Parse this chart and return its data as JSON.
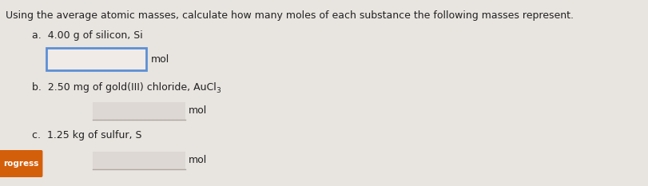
{
  "title": "Using the average atomic masses, calculate how many moles of each substance the following masses represent.",
  "title_fontsize": 9.0,
  "title_color": "#222222",
  "bg_color": "#e8e4e0",
  "item_a_label": "a.  4.00 g of silicon, Si",
  "item_b_label": "b.  2.50 mg of gold(III) chloride, AuCl",
  "item_b_subscript": "3",
  "item_c_label": "c.  1.25 kg of sulfur, S",
  "mol_label": "mol",
  "progress_btn_color": "#d45f0a",
  "progress_btn_text": "rogress",
  "progress_btn_text_color": "#ffffff",
  "box_a_border_color": "#5b8fd6",
  "box_a_fill": "#f0ebe7",
  "box_bc_fill": "#ddd8d4",
  "box_bc_line_color": "#b0a8a0"
}
